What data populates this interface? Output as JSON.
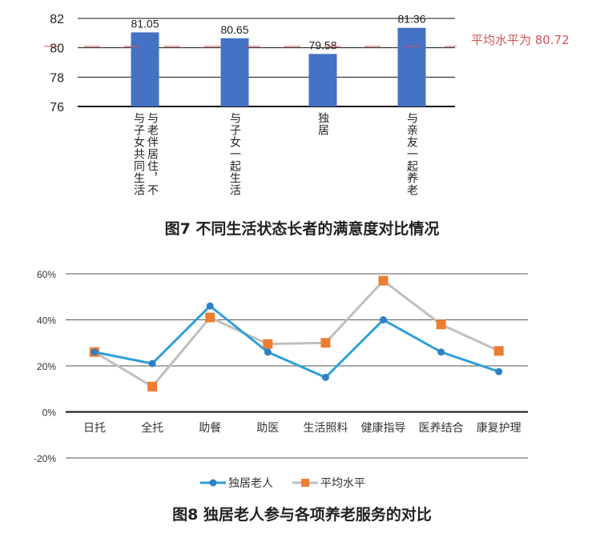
{
  "chart_data": [
    {
      "type": "bar",
      "title": "图7 不同生活状态长者的满意度对比情况",
      "categories": [
        "与老伴居住，不与子女共同生活",
        "与子女一起生活",
        "独居",
        "与亲友一起养老"
      ],
      "values": [
        81.05,
        80.65,
        79.58,
        81.36
      ],
      "value_labels": [
        "81.05",
        "80.65",
        "79.58",
        "81.36"
      ],
      "yticks": [
        "82",
        "80",
        "78",
        "76"
      ],
      "ylim": [
        76,
        82
      ],
      "grid": true,
      "reference_line": {
        "value": 80.72,
        "label": "平均水平为 80.72",
        "color": "#d0565a",
        "style": "dashed"
      },
      "bar_color": "#4472c4"
    },
    {
      "type": "line",
      "title": "图8 独居老人参与各项养老服务的对比",
      "categories": [
        "日托",
        "全托",
        "助餐",
        "助医",
        "生活照料",
        "健康指导",
        "医养结合",
        "康复护理"
      ],
      "yticks": [
        "60%",
        "40%",
        "20%",
        "0%",
        "-20%"
      ],
      "ylim": [
        -20,
        60
      ],
      "grid": true,
      "legend_position": "bottom",
      "series": [
        {
          "name": "独居老人",
          "values": [
            26,
            21,
            46,
            26,
            15,
            40,
            26,
            17.5
          ],
          "color": "#2e9fd6",
          "marker": "circle",
          "marker_color": "#2f7fc4"
        },
        {
          "name": "平均水平",
          "values": [
            26,
            11,
            41,
            29.5,
            30,
            57,
            38,
            26.5
          ],
          "color": "#bfbfbf",
          "marker": "square",
          "marker_color": "#ed7d31"
        }
      ]
    }
  ]
}
